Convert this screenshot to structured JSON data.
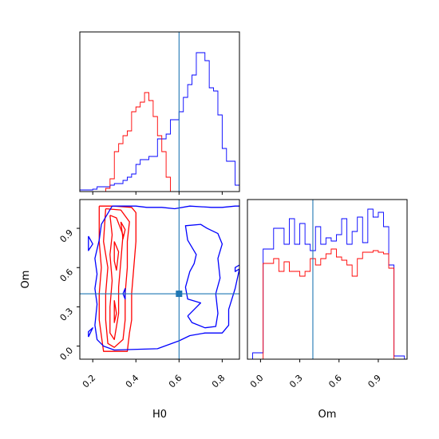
{
  "chart_data": {
    "type": "corner",
    "parameters": [
      "H0",
      "Om"
    ],
    "truth": {
      "H0": 0.6,
      "Om": 0.4
    },
    "colors": {
      "series_a": "#0000ff",
      "series_b": "#ff0000",
      "truth": "#1f77b4"
    },
    "axes": {
      "H0": {
        "label": "H0",
        "lim": [
          0.14,
          0.88
        ],
        "ticks": [
          0.2,
          0.4,
          0.6,
          0.8
        ],
        "tick_labels": [
          "0.2",
          "0.4",
          "0.6",
          "0.8"
        ]
      },
      "Om": {
        "label": "Om",
        "lim": [
          -0.1,
          1.12
        ],
        "ticks": [
          0.0,
          0.3,
          0.6,
          0.9
        ],
        "tick_labels": [
          "0.0",
          "0.3",
          "0.6",
          "0.9"
        ]
      }
    },
    "hist_H0": {
      "ylim": [
        0,
        1.0
      ],
      "bins": [
        0.14,
        0.16,
        0.18,
        0.2,
        0.22,
        0.24,
        0.26,
        0.28,
        0.3,
        0.32,
        0.34,
        0.36,
        0.38,
        0.4,
        0.42,
        0.44,
        0.46,
        0.48,
        0.5,
        0.52,
        0.54,
        0.56,
        0.58,
        0.6,
        0.62,
        0.64,
        0.66,
        0.68,
        0.7,
        0.72,
        0.74,
        0.76,
        0.78,
        0.8,
        0.82,
        0.84,
        0.86,
        0.88
      ],
      "series_a": [
        0.01,
        0.01,
        0.01,
        0.015,
        0.03,
        0.03,
        0.03,
        0.04,
        0.05,
        0.05,
        0.07,
        0.09,
        0.11,
        0.17,
        0.2,
        0.2,
        0.22,
        0.22,
        0.33,
        0.33,
        0.36,
        0.45,
        0.45,
        0.5,
        0.59,
        0.67,
        0.73,
        0.87,
        0.87,
        0.82,
        0.65,
        0.63,
        0.48,
        0.27,
        0.19,
        0.19,
        0.04
      ],
      "series_b": [
        0,
        0,
        0,
        0,
        0,
        0,
        0.02,
        0.08,
        0.25,
        0.3,
        0.35,
        0.38,
        0.5,
        0.53,
        0.56,
        0.62,
        0.57,
        0.47,
        0.35,
        0.25,
        0.09,
        0
      ]
    },
    "hist_Om": {
      "ylim": [
        0,
        1.0
      ],
      "bins": [
        -0.1,
        -0.06,
        -0.02,
        0.02,
        0.06,
        0.1,
        0.14,
        0.18,
        0.22,
        0.26,
        0.3,
        0.34,
        0.38,
        0.42,
        0.46,
        0.5,
        0.54,
        0.58,
        0.62,
        0.66,
        0.7,
        0.74,
        0.78,
        0.82,
        0.86,
        0.9,
        0.94,
        0.98,
        1.02,
        1.06,
        1.1
      ],
      "series_a": [
        0,
        0.04,
        0.04,
        0.69,
        0.69,
        0.82,
        0.82,
        0.72,
        0.88,
        0.72,
        0.85,
        0.72,
        0.68,
        0.83,
        0.72,
        0.76,
        0.74,
        0.78,
        0.88,
        0.72,
        0.8,
        0.89,
        0.73,
        0.94,
        0.89,
        0.92,
        0.83,
        0.59,
        0.02,
        0.02
      ],
      "series_b": [
        0,
        0,
        0,
        0.6,
        0.6,
        0.63,
        0.55,
        0.61,
        0.55,
        0.55,
        0.52,
        0.55,
        0.63,
        0.59,
        0.63,
        0.66,
        0.69,
        0.64,
        0.62,
        0.59,
        0.52,
        0.63,
        0.67,
        0.67,
        0.68,
        0.67,
        0.66,
        0.57,
        0,
        0
      ]
    },
    "contours_2d": {
      "series_a": [
        [
          [
            0.29,
            1.07
          ],
          [
            0.4,
            1.07
          ],
          [
            0.45,
            1.06
          ],
          [
            0.52,
            1.06
          ],
          [
            0.58,
            1.05
          ],
          [
            0.65,
            1.07
          ],
          [
            0.75,
            1.06
          ],
          [
            0.8,
            1.06
          ],
          [
            0.86,
            1.07
          ],
          [
            0.88,
            1.07
          ]
        ],
        [
          [
            0.88,
            0.59
          ],
          [
            0.86,
            0.44
          ],
          [
            0.83,
            0.28
          ],
          [
            0.83,
            0.16
          ],
          [
            0.8,
            0.1
          ],
          [
            0.72,
            0.1
          ],
          [
            0.65,
            0.08
          ],
          [
            0.6,
            0.04
          ],
          [
            0.5,
            -0.02
          ],
          [
            0.3,
            -0.03
          ],
          [
            0.25,
            0.0
          ],
          [
            0.22,
            0.05
          ],
          [
            0.21,
            0.16
          ],
          [
            0.22,
            0.32
          ],
          [
            0.21,
            0.44
          ],
          [
            0.22,
            0.55
          ],
          [
            0.21,
            0.67
          ],
          [
            0.23,
            0.81
          ],
          [
            0.24,
            0.93
          ],
          [
            0.29,
            1.07
          ]
        ],
        [
          [
            0.88,
            0.59
          ],
          [
            0.86,
            0.57
          ],
          [
            0.86,
            0.6
          ],
          [
            0.88,
            0.62
          ]
        ],
        [
          [
            0.64,
            0.23
          ],
          [
            0.66,
            0.18
          ],
          [
            0.72,
            0.14
          ],
          [
            0.77,
            0.15
          ],
          [
            0.78,
            0.25
          ],
          [
            0.77,
            0.4
          ],
          [
            0.79,
            0.52
          ],
          [
            0.78,
            0.67
          ],
          [
            0.8,
            0.78
          ],
          [
            0.78,
            0.86
          ],
          [
            0.73,
            0.9
          ],
          [
            0.7,
            0.93
          ],
          [
            0.63,
            0.92
          ],
          [
            0.64,
            0.81
          ],
          [
            0.68,
            0.7
          ],
          [
            0.67,
            0.63
          ],
          [
            0.65,
            0.57
          ],
          [
            0.63,
            0.45
          ],
          [
            0.64,
            0.36
          ],
          [
            0.7,
            0.33
          ],
          [
            0.64,
            0.23
          ]
        ],
        [
          [
            0.18,
            0.84
          ],
          [
            0.2,
            0.78
          ],
          [
            0.18,
            0.73
          ],
          [
            0.18,
            0.84
          ]
        ],
        [
          [
            0.18,
            0.07
          ],
          [
            0.2,
            0.14
          ],
          [
            0.18,
            0.11
          ],
          [
            0.18,
            0.07
          ]
        ],
        [
          [
            0.34,
            0.4
          ],
          [
            0.35,
            0.44
          ],
          [
            0.35,
            0.36
          ],
          [
            0.34,
            0.4
          ]
        ]
      ],
      "series_b": [
        [
          [
            0.23,
            1.07
          ],
          [
            0.3,
            1.07
          ],
          [
            0.38,
            1.06
          ],
          [
            0.4,
            1.02
          ],
          [
            0.4,
            0.8
          ],
          [
            0.39,
            0.6
          ],
          [
            0.38,
            0.4
          ],
          [
            0.38,
            0.2
          ],
          [
            0.37,
            0.1
          ],
          [
            0.36,
            -0.04
          ],
          [
            0.25,
            -0.04
          ],
          [
            0.24,
            0.08
          ],
          [
            0.23,
            0.2
          ],
          [
            0.23,
            0.4
          ],
          [
            0.24,
            0.6
          ],
          [
            0.23,
            0.8
          ],
          [
            0.23,
            1.07
          ]
        ],
        [
          [
            0.26,
            1.05
          ],
          [
            0.33,
            1.04
          ],
          [
            0.37,
            0.95
          ],
          [
            0.36,
            0.8
          ],
          [
            0.36,
            0.6
          ],
          [
            0.35,
            0.4
          ],
          [
            0.35,
            0.2
          ],
          [
            0.34,
            0.05
          ],
          [
            0.3,
            -0.01
          ],
          [
            0.27,
            0.02
          ],
          [
            0.26,
            0.2
          ],
          [
            0.26,
            0.4
          ],
          [
            0.27,
            0.6
          ],
          [
            0.25,
            0.8
          ],
          [
            0.26,
            1.05
          ]
        ],
        [
          [
            0.28,
            1.0
          ],
          [
            0.31,
            0.98
          ],
          [
            0.34,
            0.85
          ],
          [
            0.33,
            0.65
          ],
          [
            0.32,
            0.45
          ],
          [
            0.32,
            0.25
          ],
          [
            0.3,
            0.05
          ],
          [
            0.28,
            0.1
          ],
          [
            0.28,
            0.3
          ],
          [
            0.29,
            0.5
          ],
          [
            0.28,
            0.7
          ],
          [
            0.29,
            0.85
          ],
          [
            0.28,
            1.0
          ]
        ],
        [
          [
            0.3,
            0.8
          ],
          [
            0.32,
            0.72
          ],
          [
            0.31,
            0.58
          ],
          [
            0.3,
            0.65
          ],
          [
            0.3,
            0.8
          ]
        ],
        [
          [
            0.3,
            0.35
          ],
          [
            0.31,
            0.25
          ],
          [
            0.3,
            0.18
          ],
          [
            0.3,
            0.35
          ]
        ],
        [
          [
            0.33,
            0.95
          ],
          [
            0.35,
            0.89
          ],
          [
            0.34,
            0.82
          ],
          [
            0.33,
            0.95
          ]
        ]
      ]
    }
  }
}
